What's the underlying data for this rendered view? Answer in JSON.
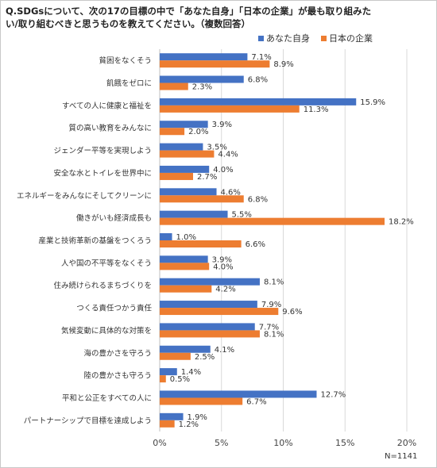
{
  "question": "Q.SDGsについて、次の17の目標の中で「あなた自身」「日本の企業」が最も取り組みたい/取り組むべきと思うものを教えてください。（複数回答）",
  "note": "N=1141",
  "colors": {
    "self": "#4472c4",
    "company": "#ed7d31",
    "grid": "#d9d9d9",
    "axis": "#bfbfbf"
  },
  "chart_data": {
    "type": "bar",
    "orientation": "horizontal",
    "categories": [
      "貧困をなくそう",
      "飢餓をゼロに",
      "すべての人に健康と福祉を",
      "質の高い教育をみんなに",
      "ジェンダー平等を実現しよう",
      "安全な水とトイレを世界中に",
      "エネルギーをみんなにそしてクリーンに",
      "働きがいも経済成長も",
      "産業と技術革新の基盤をつくろう",
      "人や国の不平等をなくそう",
      "住み続けられるまちづくりを",
      "つくる責任つかう責任",
      "気候変動に具体的な対策を",
      "海の豊かさを守ろう",
      "陸の豊かさも守ろう",
      "平和と公正をすべての人に",
      "パートナーシップで目標を達成しよう"
    ],
    "series": [
      {
        "name": "あなた自身",
        "color": "#4472c4",
        "values": [
          7.1,
          6.8,
          15.9,
          3.9,
          3.5,
          4.0,
          4.6,
          5.5,
          1.0,
          3.9,
          8.1,
          7.9,
          7.7,
          4.1,
          1.4,
          12.7,
          1.9
        ]
      },
      {
        "name": "日本の企業",
        "color": "#ed7d31",
        "values": [
          8.9,
          2.3,
          11.3,
          2.0,
          4.4,
          2.7,
          6.8,
          18.2,
          6.6,
          4.0,
          4.2,
          9.6,
          8.1,
          2.5,
          0.5,
          6.7,
          1.2
        ]
      }
    ],
    "xlim": [
      0,
      20
    ],
    "xticks": [
      "0%",
      "5%",
      "10%",
      "15%",
      "20%"
    ],
    "value_format": "%",
    "legend": "top-right",
    "grid": true
  }
}
